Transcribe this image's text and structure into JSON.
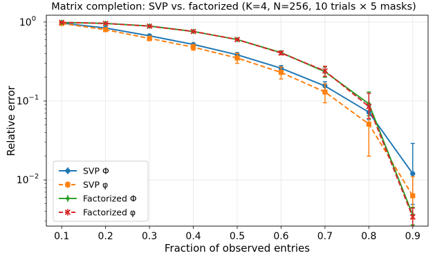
{
  "chart_data": {
    "type": "line",
    "title": "Matrix completion: SVP vs. factorized (K=4, N=256, 10 trials × 5 masks)",
    "xlabel": "Fraction of observed entries",
    "ylabel": "Relative error",
    "y_scale": "log",
    "xlim": [
      0.065,
      0.935
    ],
    "ylim": [
      0.0026,
      1.22
    ],
    "grid": true,
    "legend_position": "lower-left",
    "x_ticks": [
      0.1,
      0.2,
      0.3,
      0.4,
      0.5,
      0.6,
      0.7,
      0.8,
      0.9
    ],
    "x_tick_labels": [
      "0.1",
      "0.2",
      "0.3",
      "0.4",
      "0.5",
      "0.6",
      "0.7",
      "0.8",
      "0.9"
    ],
    "y_ticks": [
      {
        "value": 1,
        "base": "10",
        "exp": "0"
      },
      {
        "value": 0.1,
        "base": "10",
        "exp": "−1"
      },
      {
        "value": 0.01,
        "base": "10",
        "exp": "−2"
      }
    ],
    "x": [
      0.1,
      0.2,
      0.3,
      0.4,
      0.5,
      0.6,
      0.7,
      0.8,
      0.9
    ],
    "series": [
      {
        "name": "SVP Φ",
        "color": "#1f77b4",
        "dash": "solid",
        "marker": "circle",
        "values": [
          0.97,
          0.84,
          0.67,
          0.52,
          0.385,
          0.26,
          0.155,
          0.072,
          0.012
        ],
        "err_low": [
          0.95,
          0.82,
          0.65,
          0.5,
          0.36,
          0.24,
          0.135,
          0.058,
          0.0049
        ],
        "err_high": [
          0.99,
          0.86,
          0.69,
          0.54,
          0.41,
          0.28,
          0.175,
          0.086,
          0.029
        ]
      },
      {
        "name": "SVP φ",
        "color": "#ff7f0e",
        "dash": "dashed",
        "marker": "square",
        "values": [
          0.96,
          0.8,
          0.62,
          0.48,
          0.35,
          0.23,
          0.13,
          0.051,
          0.0063
        ],
        "err_low": [
          0.94,
          0.76,
          0.58,
          0.44,
          0.3,
          0.19,
          0.095,
          0.02,
          0.0032
        ],
        "err_high": [
          0.98,
          0.84,
          0.66,
          0.52,
          0.4,
          0.27,
          0.165,
          0.082,
          0.011
        ]
      },
      {
        "name": "Factorized Φ",
        "color": "#2ca02c",
        "dash": "solid",
        "marker": "diamond",
        "values": [
          0.99,
          0.96,
          0.89,
          0.76,
          0.6,
          0.41,
          0.235,
          0.092,
          0.0036
        ],
        "err_low": [
          0.98,
          0.95,
          0.88,
          0.75,
          0.585,
          0.39,
          0.2,
          0.065,
          0.0027
        ],
        "err_high": [
          1.0,
          0.97,
          0.9,
          0.77,
          0.615,
          0.43,
          0.27,
          0.13,
          0.0045
        ]
      },
      {
        "name": "Factorized φ",
        "color": "#d62728",
        "dash": "dashed",
        "marker": "x",
        "values": [
          0.99,
          0.96,
          0.885,
          0.76,
          0.6,
          0.405,
          0.24,
          0.085,
          0.0034
        ],
        "err_low": [
          0.98,
          0.95,
          0.875,
          0.75,
          0.585,
          0.385,
          0.205,
          0.06,
          0.0026
        ],
        "err_high": [
          1.0,
          0.97,
          0.895,
          0.77,
          0.615,
          0.425,
          0.275,
          0.125,
          0.0044
        ]
      }
    ]
  }
}
